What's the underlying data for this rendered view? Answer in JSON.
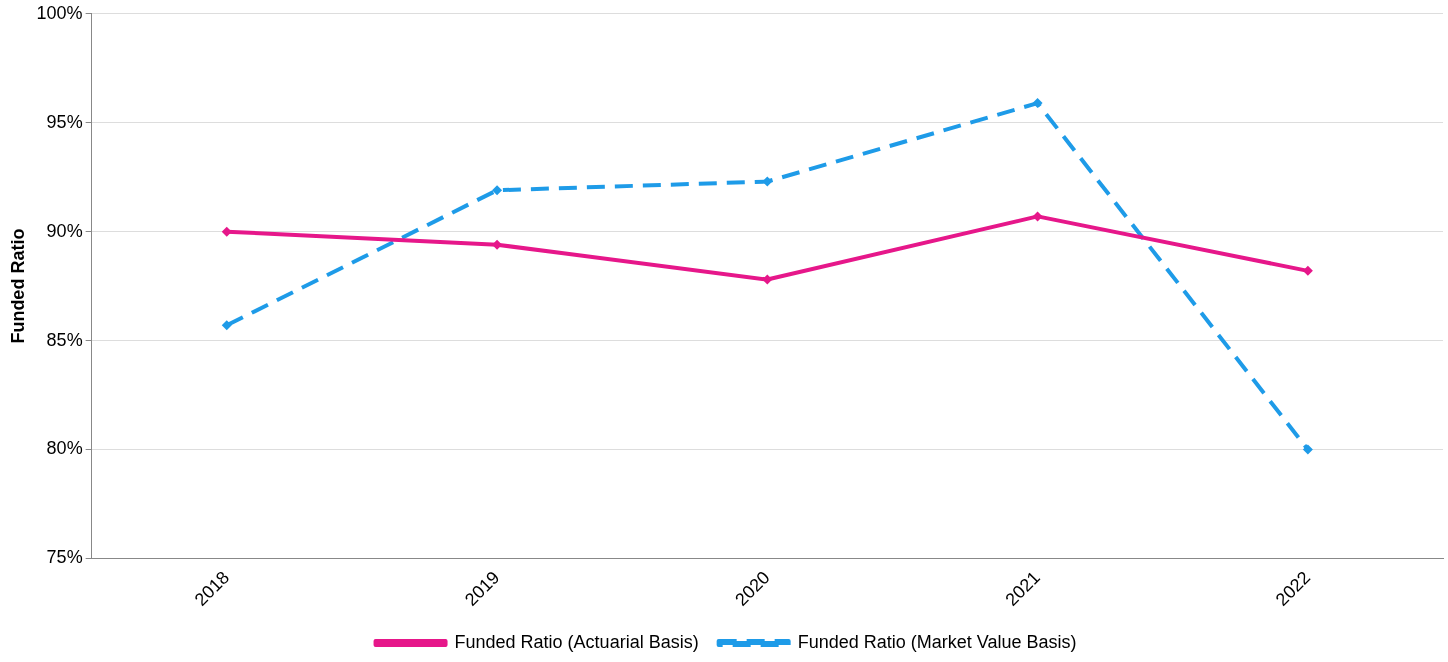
{
  "chart_data": {
    "type": "line",
    "ylabel": "Funded Ratio",
    "categories": [
      "2018",
      "2019",
      "2020",
      "2021",
      "2022"
    ],
    "series": [
      {
        "name": "Funded Ratio (Actuarial Basis)",
        "color": "#e6178a",
        "line_style": "solid",
        "values": [
          90.0,
          89.4,
          87.8,
          90.7,
          88.2
        ]
      },
      {
        "name": "Funded Ratio (Market Value Basis)",
        "color": "#1e9be8",
        "line_style": "dashed",
        "values": [
          85.7,
          91.9,
          92.3,
          95.9,
          80.0
        ]
      }
    ],
    "ylim": [
      75,
      100
    ],
    "yticks": [
      {
        "value": 75,
        "label": "75%"
      },
      {
        "value": 80,
        "label": "80%"
      },
      {
        "value": 85,
        "label": "85%"
      },
      {
        "value": 90,
        "label": "90%"
      },
      {
        "value": 95,
        "label": "95%"
      },
      {
        "value": 100,
        "label": "100%"
      }
    ],
    "grid": "y",
    "legend": "bottom",
    "marker": "diamond"
  }
}
